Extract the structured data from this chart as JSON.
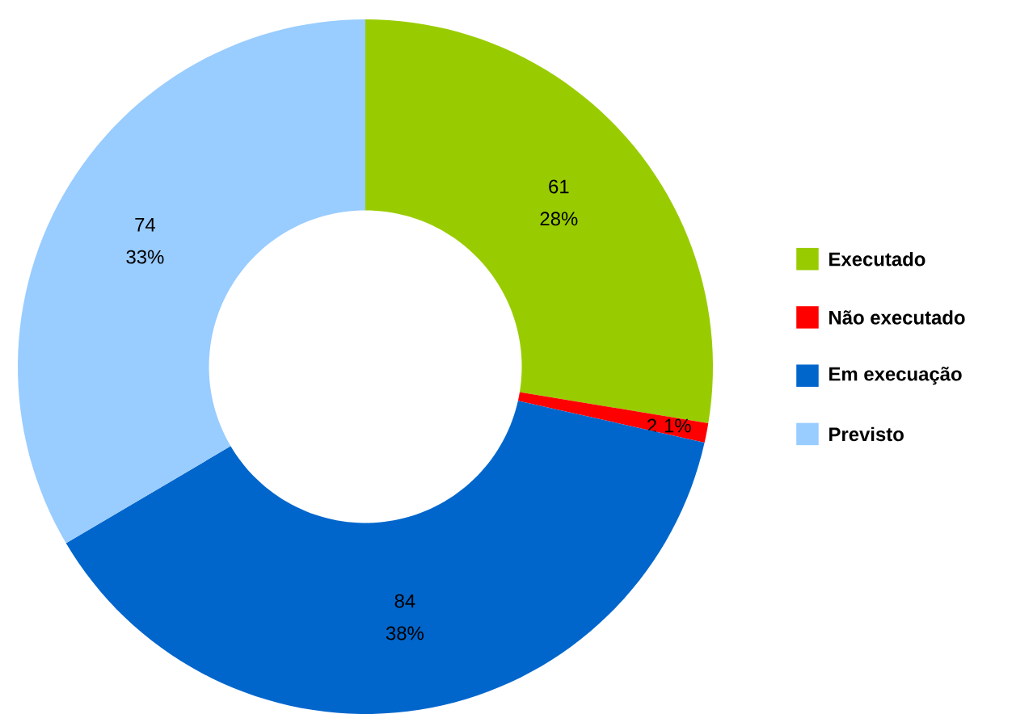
{
  "chart_data": {
    "type": "donut",
    "categories": [
      "Executado",
      "Não executado",
      "Em execuação",
      "Previsto"
    ],
    "values": [
      61,
      2,
      84,
      74
    ],
    "colors": [
      "#99cc00",
      "#ff0000",
      "#0066cc",
      "#99ccff"
    ],
    "value_labels": [
      "61 28%",
      "2 1%",
      "84 38%",
      "74 33%"
    ],
    "legend": "right"
  }
}
